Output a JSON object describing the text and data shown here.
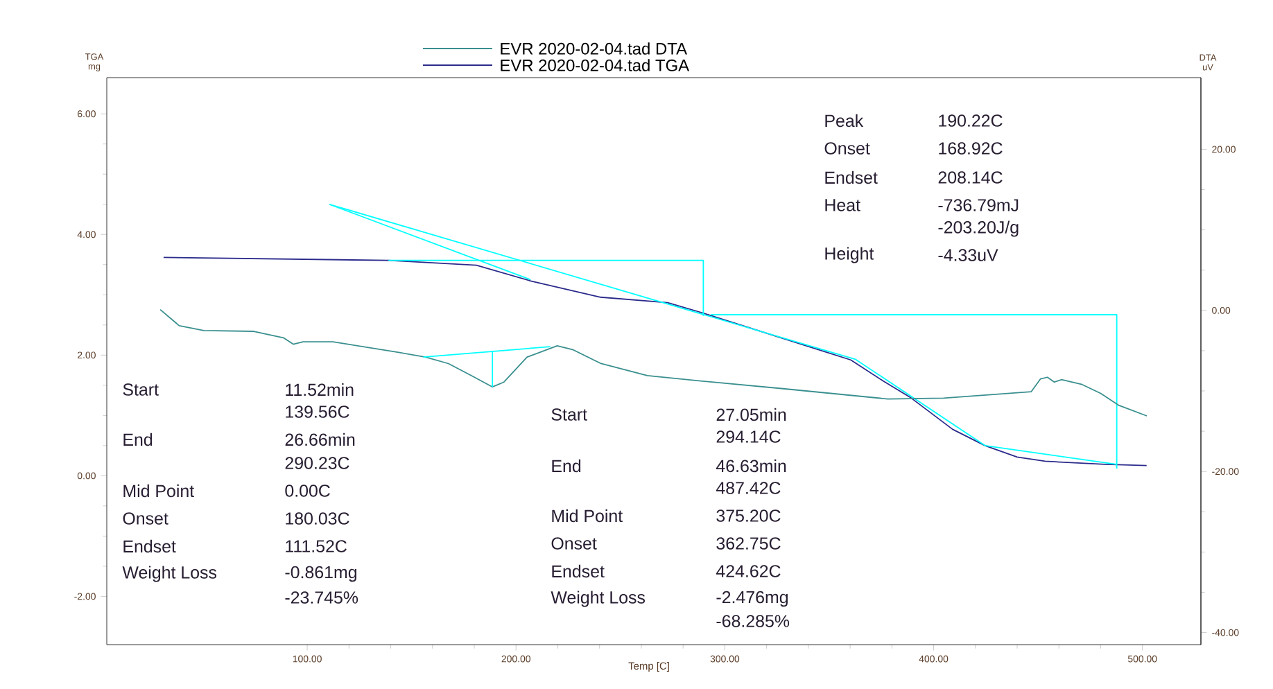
{
  "chart_data": {
    "type": "line",
    "xlabel": "Temp [C]",
    "ylabel": "TGA mg",
    "y2label": "DTA uV",
    "xlim": [
      4,
      528
    ],
    "ylim": [
      -2.8,
      6.6
    ],
    "y2lim": [
      -41.5,
      28.9
    ],
    "xticks": [
      {
        "value": 100,
        "label": "100.00"
      },
      {
        "value": 200,
        "label": "200.00"
      },
      {
        "value": 300,
        "label": "300.00"
      },
      {
        "value": 400,
        "label": "400.00"
      },
      {
        "value": 500,
        "label": "500.00"
      }
    ],
    "yticks": [
      {
        "value": -2,
        "label": "-2.00"
      },
      {
        "value": 0,
        "label": "0.00"
      },
      {
        "value": 2,
        "label": "2.00"
      },
      {
        "value": 4,
        "label": "4.00"
      },
      {
        "value": 6,
        "label": "6.00"
      }
    ],
    "y2ticks": [
      {
        "value": -40,
        "label": "-40.00"
      },
      {
        "value": -20,
        "label": "-20.00"
      },
      {
        "value": 0,
        "label": "0.00"
      },
      {
        "value": 20,
        "label": "20.00"
      }
    ],
    "legend": "top",
    "series": [
      {
        "name": "EVR 2020-02-04.tad DTA",
        "color": "#3a8f8f",
        "axis": "y2",
        "x": [
          29.6,
          38.7,
          50.5,
          74.4,
          88.6,
          93.3,
          98,
          112.3,
          143.3,
          156.6,
          167.6,
          178.7,
          188.7,
          194.2,
          205.3,
          219.7,
          227.4,
          240.7,
          262.9,
          293.9,
          327.1,
          378.1,
          404.7,
          446.7,
          451.2,
          454.5,
          457.8,
          461.2,
          471.1,
          480,
          488.8,
          502.1
        ],
        "values": [
          0.1,
          -1.9,
          -2.5,
          -2.6,
          -3.4,
          -4.2,
          -3.9,
          -3.9,
          -5.2,
          -5.8,
          -6.6,
          -8.1,
          -9.5,
          -8.9,
          -5.8,
          -4.4,
          -4.9,
          -6.6,
          -8.1,
          -8.9,
          -9.7,
          -11.0,
          -10.9,
          -10.1,
          -8.5,
          -8.3,
          -8.9,
          -8.6,
          -9.2,
          -10.3,
          -11.8,
          -13.1
        ]
      },
      {
        "name": "EVR 2020-02-04.tad TGA",
        "color": "#2b2b8c",
        "x": [
          31.2,
          138.9,
          181,
          207,
          240.5,
          272.6,
          290.3,
          360.3,
          375.9,
          389.2,
          409.1,
          424.6,
          440,
          453.4,
          482.2,
          502
        ],
        "values": [
          3.62,
          3.57,
          3.49,
          3.23,
          2.96,
          2.87,
          2.69,
          1.92,
          1.57,
          1.29,
          0.77,
          0.5,
          0.31,
          0.24,
          0.19,
          0.17
        ]
      },
      {
        "color": "#00ffff",
        "x": [
          138.9,
          289.7,
          289.7
        ],
        "values": [
          3.57,
          3.57,
          2.65
        ]
      },
      {
        "color": "#00ffff",
        "x": [
          293.2,
          487.7,
          487.7
        ],
        "values": [
          2.67,
          2.67,
          0.12
        ]
      },
      {
        "color": "#00ffff",
        "x": [
          110.6,
          362.6,
          424.6,
          487.6
        ],
        "values": [
          4.5,
          1.93,
          0.5,
          0.19
        ]
      },
      {
        "color": "#00ffff",
        "x": [
          110.6,
          207
        ],
        "values": [
          4.5,
          3.25
        ]
      },
      {
        "color": "#00ffff",
        "axis": "y2",
        "x": [
          155.6,
          216.4
        ],
        "values": [
          -5.8,
          -4.5
        ]
      },
      {
        "color": "#00ffff",
        "axis": "y2",
        "x": [
          188.7,
          188.7
        ],
        "values": [
          -5.0,
          -9.5
        ]
      }
    ],
    "annotations": [
      "Start",
      "11.52min",
      "139.56C",
      "End",
      "26.66min",
      "290.23C",
      "Mid Point",
      "0.00C",
      "Onset",
      "180.03C",
      "Endset",
      "111.52C",
      "Weight Loss",
      "-0.861mg",
      "-23.745%",
      "Start",
      "27.05min",
      "294.14C",
      "End",
      "46.63min",
      "487.42C",
      "Mid Point",
      "375.20C",
      "Onset",
      "362.75C",
      "Endset",
      "424.62C",
      "Weight Loss",
      "-2.476mg",
      "-68.285%",
      "Peak",
      "190.22C",
      "Onset",
      "168.92C",
      "Endset",
      "208.14C",
      "Heat",
      "-736.79mJ",
      "-203.20J/g",
      "Height",
      "-4.33uV"
    ]
  }
}
